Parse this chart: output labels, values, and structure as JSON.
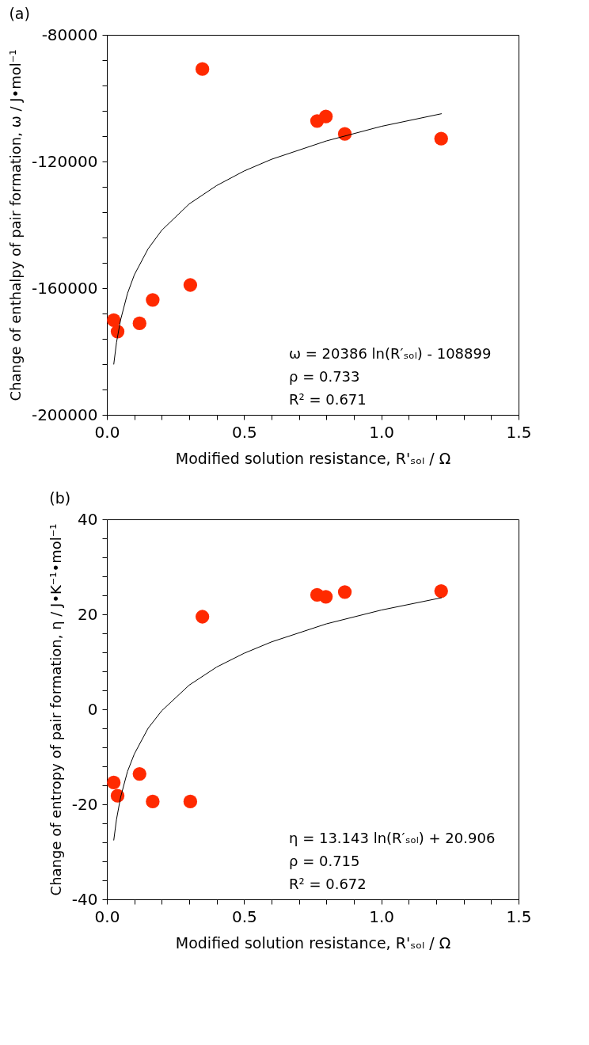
{
  "chart_data": [
    {
      "type": "scatter",
      "title": "(a)",
      "xlabel": "Modified solution resistance, R'ₛₒₗ / Ω",
      "ylabel": "Change of enthalpy of pair formation, ω / J•mol⁻¹",
      "xlim": [
        0,
        1.5
      ],
      "ylim": [
        -200000,
        -80000
      ],
      "grid": false,
      "xticks": [
        {
          "value": 0,
          "label": "0.0"
        },
        {
          "value": 0.1,
          "label": null
        },
        {
          "value": 0.2,
          "label": null
        },
        {
          "value": 0.3,
          "label": null
        },
        {
          "value": 0.4,
          "label": null
        },
        {
          "value": 0.5,
          "label": "0.5"
        },
        {
          "value": 0.6,
          "label": null
        },
        {
          "value": 0.7,
          "label": null
        },
        {
          "value": 0.8,
          "label": null
        },
        {
          "value": 0.9,
          "label": null
        },
        {
          "value": 1,
          "label": "1.0"
        },
        {
          "value": 1.1,
          "label": null
        },
        {
          "value": 1.2,
          "label": null
        },
        {
          "value": 1.3,
          "label": null
        },
        {
          "value": 1.4,
          "label": null
        },
        {
          "value": 1.5,
          "label": "1.5"
        }
      ],
      "yticks": [
        -200000,
        {
          "value": -192000,
          "label": null
        },
        {
          "value": -184000,
          "label": null
        },
        {
          "value": -176000,
          "label": null
        },
        {
          "value": -168000,
          "label": null
        },
        -160000,
        {
          "value": -152000,
          "label": null
        },
        {
          "value": -144000,
          "label": null
        },
        {
          "value": -136000,
          "label": null
        },
        {
          "value": -128000,
          "label": null
        },
        -120000,
        {
          "value": -112000,
          "label": null
        },
        {
          "value": -104000,
          "label": null
        },
        {
          "value": -96000,
          "label": null
        },
        {
          "value": -88000,
          "label": null
        },
        -80000
      ],
      "series": [
        {
          "type": "scatter",
          "marker": "circle",
          "color": "#ff2a00",
          "x": [
            0.025,
            0.039,
            0.119,
            0.167,
            0.304,
            0.348,
            0.766,
            0.798,
            0.867,
            1.218
          ],
          "values": [
            -170100,
            -173700,
            -171100,
            -163700,
            -159000,
            -90800,
            -107200,
            -105800,
            -111300,
            -112800
          ]
        },
        {
          "type": "line",
          "color": "#000000",
          "x": [
            0.025,
            0.035,
            0.05,
            0.075,
            0.1,
            0.15,
            0.2,
            0.3,
            0.4,
            0.5,
            0.6,
            0.8,
            1.0,
            1.22
          ],
          "values": [
            -184100,
            -177200,
            -170000,
            -161700,
            -155800,
            -147600,
            -141700,
            -133400,
            -127600,
            -123000,
            -119300,
            -113500,
            -108900,
            -104900
          ]
        }
      ],
      "annotations": [
        "ω = 20386 ln(R′ₛₒₗ) - 108899",
        "ρ  = 0.733",
        "R² = 0.671"
      ]
    },
    {
      "type": "scatter",
      "title": "(b)",
      "xlabel": "Modified solution resistance, R'ₛₒₗ / Ω",
      "ylabel": "Change of entropy of pair formation, η / J•K⁻¹•mol⁻¹",
      "xlim": [
        0,
        1.5
      ],
      "ylim": [
        -40,
        40
      ],
      "xticks": [
        {
          "value": 0,
          "label": "0.0"
        },
        {
          "value": 0.1,
          "label": null
        },
        {
          "value": 0.2,
          "label": null
        },
        {
          "value": 0.3,
          "label": null
        },
        {
          "value": 0.4,
          "label": null
        },
        {
          "value": 0.5,
          "label": "0.5"
        },
        {
          "value": 0.6,
          "label": null
        },
        {
          "value": 0.7,
          "label": null
        },
        {
          "value": 0.8,
          "label": null
        },
        {
          "value": 0.9,
          "label": null
        },
        {
          "value": 1,
          "label": "1.0"
        },
        {
          "value": 1.1,
          "label": null
        },
        {
          "value": 1.2,
          "label": null
        },
        {
          "value": 1.3,
          "label": null
        },
        {
          "value": 1.4,
          "label": null
        },
        {
          "value": 1.5,
          "label": "1.5"
        }
      ],
      "yticks": [
        -40,
        {
          "value": -36,
          "label": null
        },
        {
          "value": -32,
          "label": null
        },
        {
          "value": -28,
          "label": null
        },
        {
          "value": -24,
          "label": null
        },
        -20,
        {
          "value": -16,
          "label": null
        },
        {
          "value": -12,
          "label": null
        },
        {
          "value": -8,
          "label": null
        },
        {
          "value": -4,
          "label": null
        },
        0,
        {
          "value": 4,
          "label": null
        },
        {
          "value": 8,
          "label": null
        },
        {
          "value": 12,
          "label": null
        },
        {
          "value": 16,
          "label": null
        },
        20,
        {
          "value": 24,
          "label": null
        },
        {
          "value": 28,
          "label": null
        },
        {
          "value": 32,
          "label": null
        },
        {
          "value": 36,
          "label": null
        },
        40
      ],
      "grid": false,
      "series": [
        {
          "type": "scatter",
          "marker": "circle",
          "color": "#ff2a00",
          "x": [
            0.025,
            0.039,
            0.119,
            0.167,
            0.304,
            0.348,
            0.766,
            0.798,
            0.867,
            1.218
          ],
          "values": [
            -15.4,
            -18.2,
            -13.6,
            -19.4,
            -19.4,
            19.5,
            24.1,
            23.7,
            24.7,
            24.9
          ]
        },
        {
          "type": "line",
          "color": "#000000",
          "x": [
            0.025,
            0.035,
            0.05,
            0.075,
            0.1,
            0.15,
            0.2,
            0.3,
            0.4,
            0.5,
            0.6,
            0.8,
            1.0,
            1.22
          ],
          "values": [
            -27.6,
            -23.2,
            -18.5,
            -13.1,
            -9.4,
            -4.0,
            -0.3,
            5.1,
            8.9,
            11.8,
            14.2,
            18.0,
            20.9,
            23.5
          ]
        }
      ],
      "annotations": [
        "η  = 13.143 ln(R′ₛₒₗ) + 20.906",
        "ρ  = 0.715",
        "R² = 0.672"
      ]
    }
  ]
}
